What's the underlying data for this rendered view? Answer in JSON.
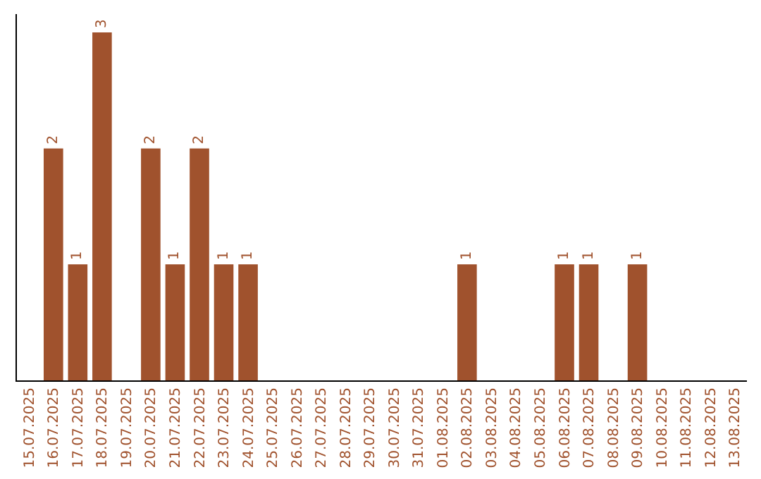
{
  "chart_data": {
    "type": "bar",
    "categories": [
      "15.07.2025",
      "16.07.2025",
      "17.07.2025",
      "18.07.2025",
      "19.07.2025",
      "20.07.2025",
      "21.07.2025",
      "22.07.2025",
      "23.07.2025",
      "24.07.2025",
      "25.07.2025",
      "26.07.2025",
      "27.07.2025",
      "28.07.2025",
      "29.07.2025",
      "30.07.2025",
      "31.07.2025",
      "01.08.2025",
      "02.08.2025",
      "03.08.2025",
      "04.08.2025",
      "05.08.2025",
      "06.08.2025",
      "07.08.2025",
      "08.08.2025",
      "09.08.2025",
      "10.08.2025",
      "11.08.2025",
      "12.08.2025",
      "13.08.2025"
    ],
    "values": [
      0,
      2,
      1,
      3,
      0,
      2,
      1,
      2,
      1,
      1,
      0,
      0,
      0,
      0,
      0,
      0,
      0,
      0,
      1,
      0,
      0,
      0,
      1,
      1,
      0,
      1,
      0,
      0,
      0,
      0
    ],
    "value_labels": [
      null,
      "2",
      "1",
      "3",
      null,
      "2",
      "1",
      "2",
      "1",
      "1",
      null,
      null,
      null,
      null,
      null,
      null,
      null,
      null,
      "1",
      null,
      null,
      null,
      "1",
      "1",
      null,
      "1",
      null,
      null,
      null,
      null
    ],
    "color": "#a0522d",
    "tick_labels": "x"
  }
}
